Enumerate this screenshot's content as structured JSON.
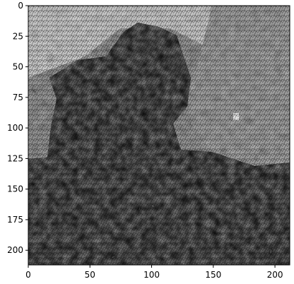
{
  "chart_data": {
    "type": "heatmap",
    "title": "",
    "xlabel": "",
    "ylabel": "",
    "grid": false,
    "colormap": "gray",
    "image_size": [
      212,
      212
    ],
    "xlim": [
      0,
      212
    ],
    "ylim": [
      212,
      0
    ],
    "x_ticks": [
      0,
      50,
      100,
      150,
      200
    ],
    "y_ticks": [
      0,
      25,
      50,
      75,
      100,
      125,
      150,
      175,
      200
    ],
    "x_tick_labels": [
      "0",
      "50",
      "100",
      "150",
      "200"
    ],
    "y_tick_labels": [
      "0",
      "25",
      "50",
      "75",
      "100",
      "125",
      "150",
      "175",
      "200"
    ],
    "description_regions": [
      {
        "name": "upper-left-background",
        "intensity": 0.62
      },
      {
        "name": "upper-right-background",
        "intensity": 0.66
      },
      {
        "name": "dark-figure",
        "intensity": 0.12
      },
      {
        "name": "lower-band",
        "intensity": 0.32
      }
    ]
  }
}
